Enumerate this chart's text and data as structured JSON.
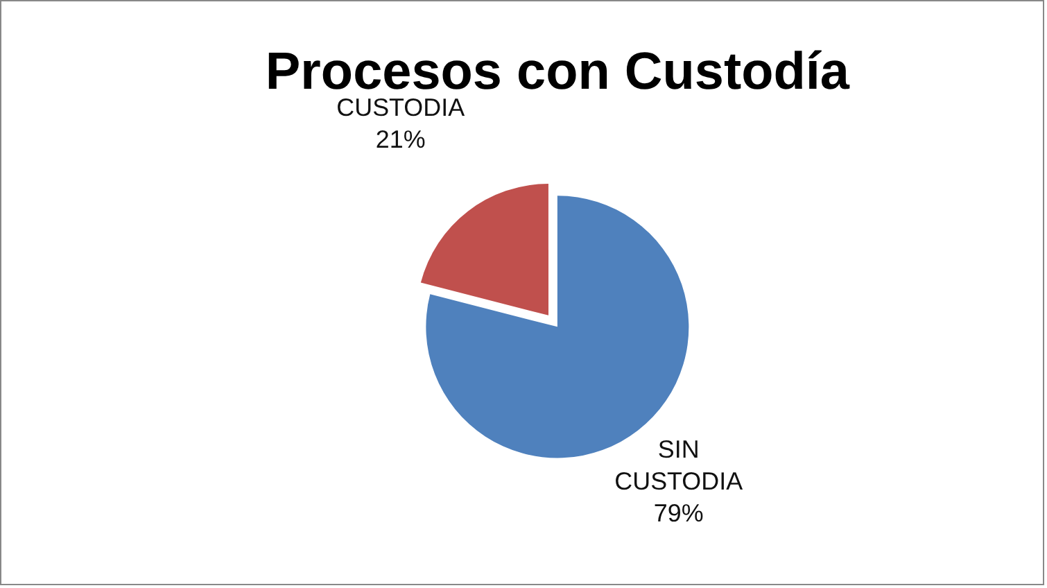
{
  "chart_data": {
    "type": "pie",
    "title": "Procesos con Custodía",
    "categories": [
      "SIN CUSTODIA",
      "CUSTODIA"
    ],
    "values": [
      79,
      21
    ],
    "value_labels": [
      "79%",
      "21%"
    ],
    "colors": [
      "#4f81bd",
      "#c0504d"
    ],
    "legend": false
  }
}
